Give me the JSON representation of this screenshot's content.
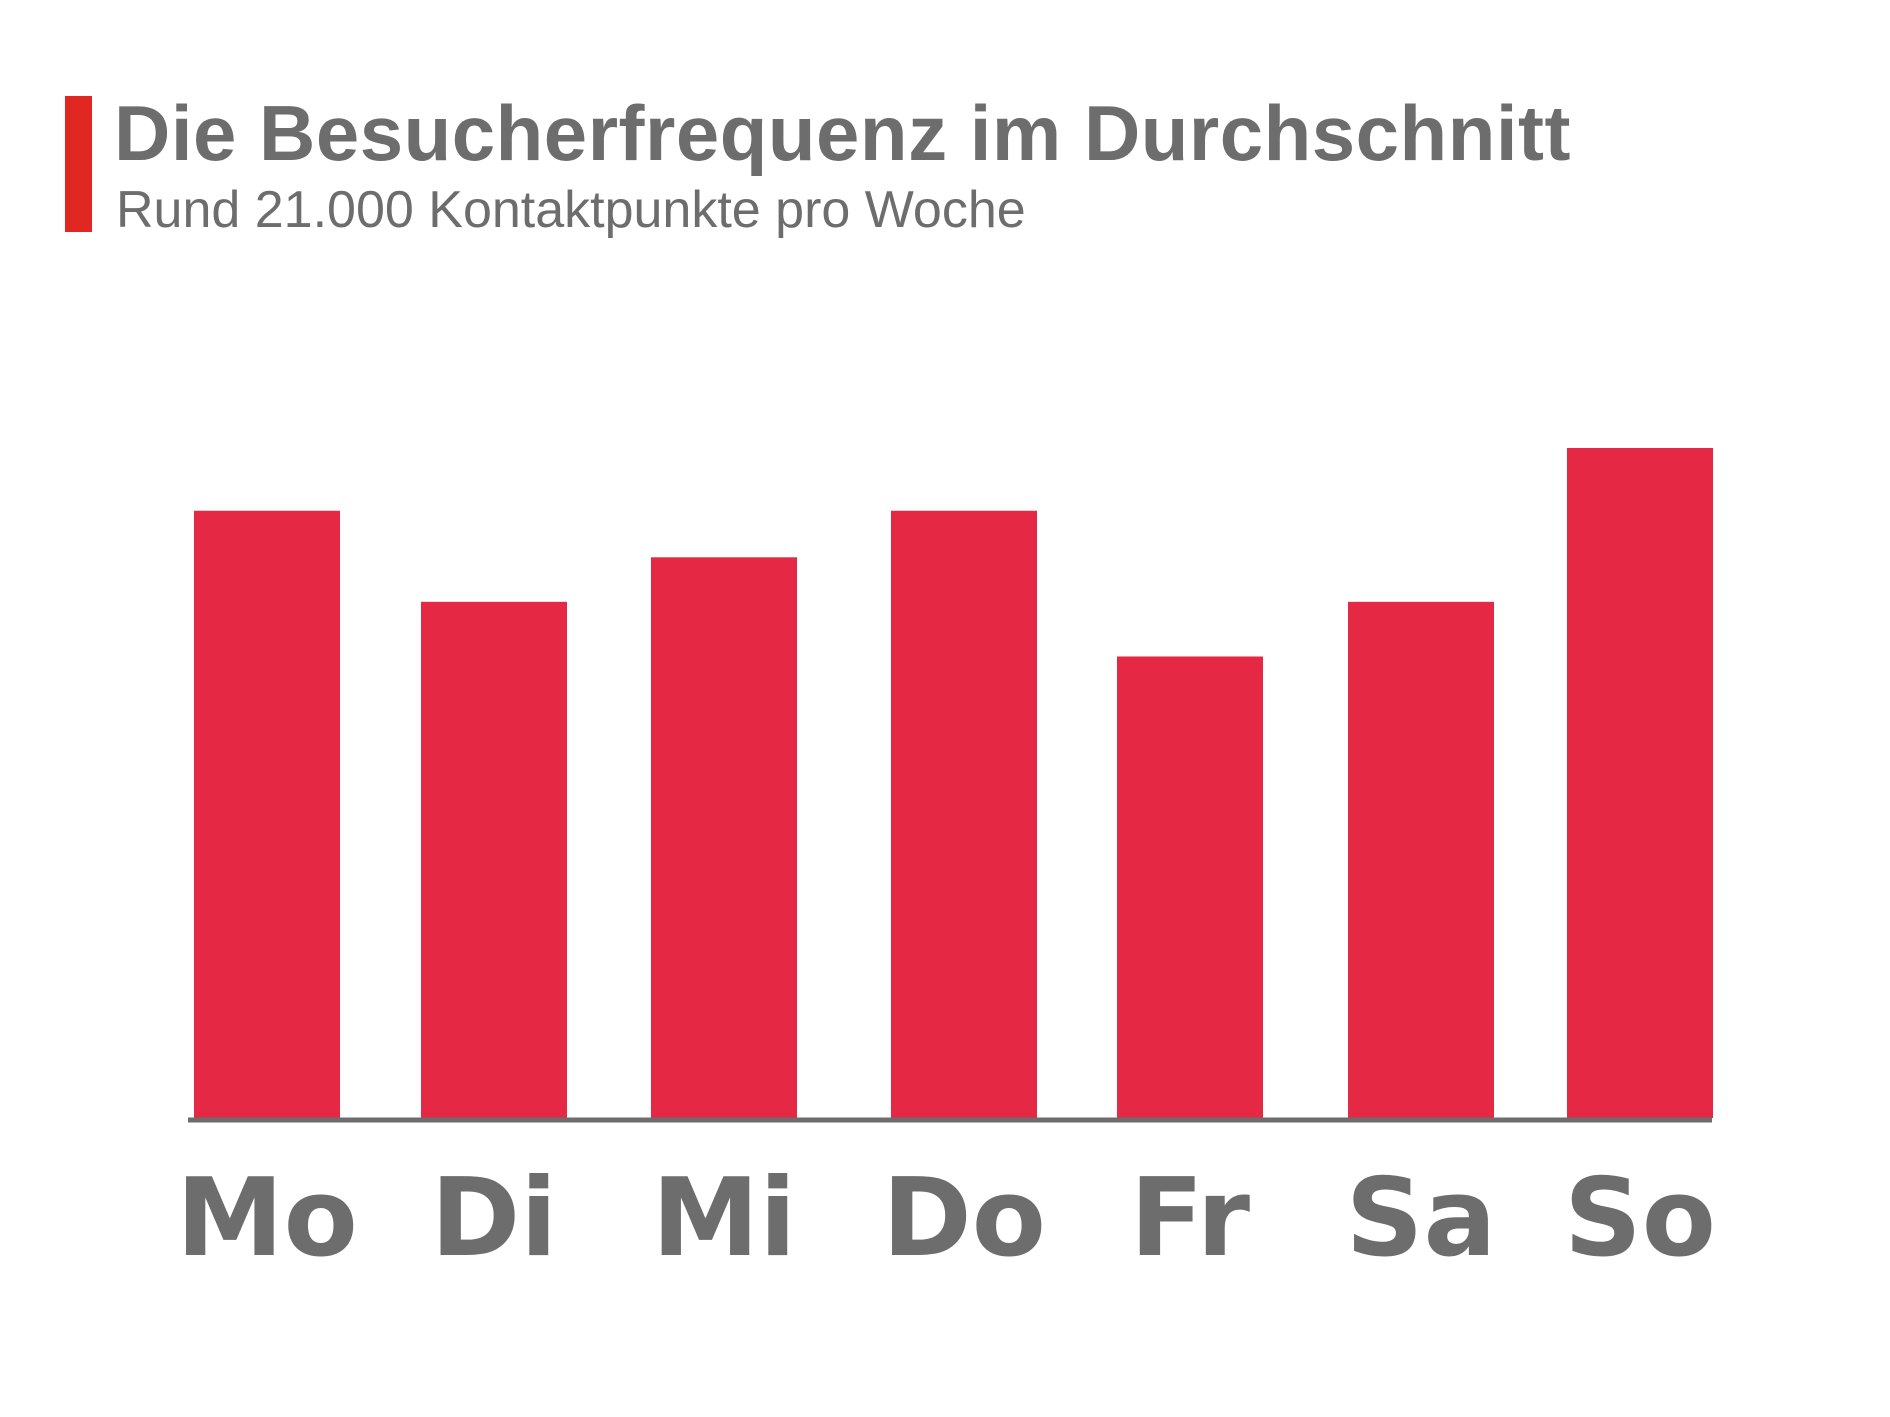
{
  "header": {
    "title": "Die Besucherfrequenz im Durchschnitt",
    "subtitle": "Rund 21.000 Kontaktpunkte pro Woche"
  },
  "colors": {
    "accent": "#e02722",
    "bar": "#e52843",
    "text": "#6d6d6d",
    "axis": "#6d6d6d"
  },
  "chart_data": {
    "type": "bar",
    "title": "Die Besucherfrequenz im Durchschnitt",
    "subtitle": "Rund 21.000 Kontaktpunkte pro Woche",
    "xlabel": "",
    "ylabel": "",
    "categories": [
      "Mo",
      "Di",
      "Mi",
      "Do",
      "Fr",
      "Sa",
      "So"
    ],
    "values": [
      3000,
      2550,
      2770,
      3000,
      2280,
      2550,
      3310
    ],
    "ylim": [
      0,
      3310
    ],
    "grid": false,
    "legend": "none"
  }
}
